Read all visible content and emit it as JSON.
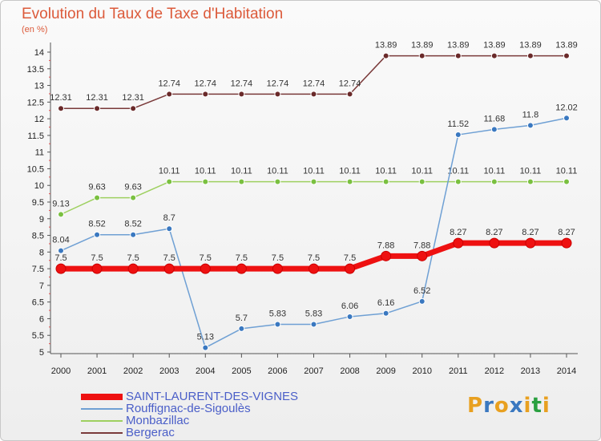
{
  "title": "Evolution du Taux de Taxe d'Habitation",
  "subtitle": "(en %)",
  "logo": {
    "text": "Proxiti",
    "colors": [
      "#e8a020",
      "#3a78c0",
      "#e8a020",
      "#3a78c0",
      "#e8a020",
      "#2aa040",
      "#e8a020"
    ]
  },
  "chart_data": {
    "type": "line",
    "x": [
      "2000",
      "2001",
      "2002",
      "2003",
      "2004",
      "2005",
      "2006",
      "2007",
      "2008",
      "2009",
      "2010",
      "2011",
      "2012",
      "2013",
      "2014"
    ],
    "ylim": [
      5,
      14
    ],
    "yticks": [
      "5",
      "5.5",
      "6",
      "6.5",
      "7",
      "7.5",
      "8",
      "8.5",
      "9",
      "9.5",
      "10",
      "10.5",
      "11",
      "11.5",
      "12",
      "12.5",
      "13",
      "13.5",
      "14"
    ],
    "grid": false,
    "legend_position": "bottom-left",
    "series": [
      {
        "name": "SAINT-LAURENT-DES-VIGNES",
        "color": "#ee1111",
        "width": 7,
        "marker_fill": "#ee1111",
        "values": [
          7.5,
          7.5,
          7.5,
          7.5,
          7.5,
          7.5,
          7.5,
          7.5,
          7.5,
          7.88,
          7.88,
          8.27,
          8.27,
          8.27,
          8.27
        ],
        "labels": [
          "7.5",
          "7.5",
          "7.5",
          "7.5",
          "7.5",
          "7.5",
          "7.5",
          "7.5",
          "7.5",
          "7.88",
          "7.88",
          "8.27",
          "8.27",
          "8.27",
          "8.27"
        ]
      },
      {
        "name": "Rouffignac-de-Sigoulès",
        "color": "#6fa0d4",
        "width": 1.5,
        "marker_fill": "#3a78c0",
        "values": [
          8.04,
          8.52,
          8.52,
          8.7,
          5.13,
          5.7,
          5.83,
          5.83,
          6.06,
          6.16,
          6.52,
          11.52,
          11.68,
          11.8,
          12.02
        ],
        "labels": [
          "8.04",
          "8.52",
          "8.52",
          "8.7",
          "5.13",
          "5.7",
          "5.83",
          "5.83",
          "6.06",
          "6.16",
          "6.52",
          "11.52",
          "11.68",
          "11.8",
          "12.02"
        ]
      },
      {
        "name": "Monbazillac",
        "color": "#9ed060",
        "width": 1.5,
        "marker_fill": "#7ac040",
        "values": [
          9.13,
          9.63,
          9.63,
          10.11,
          10.11,
          10.11,
          10.11,
          10.11,
          10.11,
          10.11,
          10.11,
          10.11,
          10.11,
          10.11,
          10.11
        ],
        "labels": [
          "9.13",
          "9.63",
          "9.63",
          "10.11",
          "10.11",
          "10.11",
          "10.11",
          "10.11",
          "10.11",
          "10.11",
          "10.11",
          "10.11",
          "10.11",
          "10.11",
          "10.11"
        ]
      },
      {
        "name": "Bergerac",
        "color": "#7a3a3a",
        "width": 1.5,
        "marker_fill": "#6a2a2a",
        "values": [
          12.31,
          12.31,
          12.31,
          12.74,
          12.74,
          12.74,
          12.74,
          12.74,
          12.74,
          13.89,
          13.89,
          13.89,
          13.89,
          13.89,
          13.89
        ],
        "labels": [
          "12.31",
          "12.31",
          "12.31",
          "12.74",
          "12.74",
          "12.74",
          "12.74",
          "12.74",
          "12.74",
          "13.89",
          "13.89",
          "13.89",
          "13.89",
          "13.89",
          "13.89"
        ]
      }
    ]
  }
}
